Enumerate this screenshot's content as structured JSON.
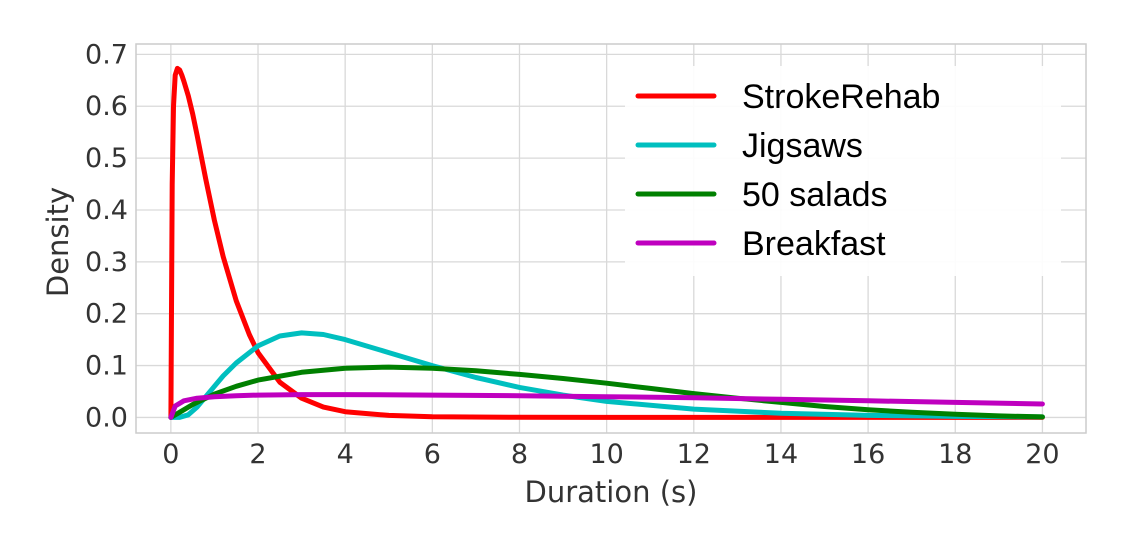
{
  "chart_data": {
    "type": "line",
    "xlabel": "Duration (s)",
    "ylabel": "Density",
    "xlim": [
      -0.8,
      21
    ],
    "ylim": [
      -0.03,
      0.72
    ],
    "x_ticks": [
      "0",
      "2",
      "4",
      "6",
      "8",
      "10",
      "12",
      "14",
      "16",
      "18",
      "20"
    ],
    "y_ticks": [
      "0.0",
      "0.1",
      "0.2",
      "0.3",
      "0.4",
      "0.5",
      "0.6",
      "0.7"
    ],
    "grid": true,
    "legend_position": "top-right",
    "series": [
      {
        "name": "StrokeRehab",
        "color": "#ff0000",
        "x": [
          0,
          0.03,
          0.06,
          0.1,
          0.15,
          0.2,
          0.25,
          0.3,
          0.4,
          0.5,
          0.6,
          0.8,
          1,
          1.2,
          1.5,
          1.8,
          2,
          2.5,
          3,
          3.5,
          4,
          5,
          6,
          8,
          10,
          12,
          14,
          16,
          18,
          20
        ],
        "values": [
          0,
          0.45,
          0.6,
          0.66,
          0.673,
          0.67,
          0.66,
          0.648,
          0.62,
          0.585,
          0.545,
          0.46,
          0.38,
          0.31,
          0.225,
          0.16,
          0.125,
          0.068,
          0.037,
          0.02,
          0.011,
          0.004,
          0.0015,
          0.0003,
          0.0001,
          0,
          0,
          0,
          0,
          0
        ]
      },
      {
        "name": "Jigsaws",
        "color": "#00bfbf",
        "x": [
          0,
          0.2,
          0.4,
          0.6,
          0.8,
          1,
          1.2,
          1.5,
          2,
          2.5,
          3,
          3.5,
          4,
          5,
          6,
          7,
          8,
          9,
          10,
          12,
          14,
          16,
          18,
          20
        ],
        "values": [
          0,
          0,
          0.005,
          0.02,
          0.04,
          0.06,
          0.08,
          0.105,
          0.138,
          0.157,
          0.163,
          0.16,
          0.15,
          0.125,
          0.1,
          0.077,
          0.058,
          0.043,
          0.031,
          0.016,
          0.008,
          0.004,
          0.002,
          0.001
        ]
      },
      {
        "name": "50 salads",
        "color": "#008000",
        "x": [
          0,
          0.2,
          0.5,
          1,
          1.5,
          2,
          3,
          4,
          5,
          6,
          7,
          8,
          9,
          10,
          11,
          12,
          13,
          14,
          15,
          16,
          17,
          18,
          19,
          20
        ],
        "values": [
          0,
          0.01,
          0.025,
          0.045,
          0.06,
          0.072,
          0.087,
          0.095,
          0.097,
          0.095,
          0.09,
          0.083,
          0.075,
          0.066,
          0.056,
          0.046,
          0.037,
          0.029,
          0.021,
          0.015,
          0.01,
          0.006,
          0.003,
          0.001
        ]
      },
      {
        "name": "Breakfast",
        "color": "#bf00bf",
        "x": [
          0,
          0.1,
          0.3,
          0.6,
          1,
          1.5,
          2,
          3,
          4,
          6,
          8,
          10,
          12,
          14,
          16,
          18,
          20
        ],
        "values": [
          0,
          0.022,
          0.032,
          0.037,
          0.04,
          0.042,
          0.043,
          0.044,
          0.044,
          0.043,
          0.042,
          0.04,
          0.038,
          0.035,
          0.032,
          0.029,
          0.026
        ]
      }
    ]
  }
}
